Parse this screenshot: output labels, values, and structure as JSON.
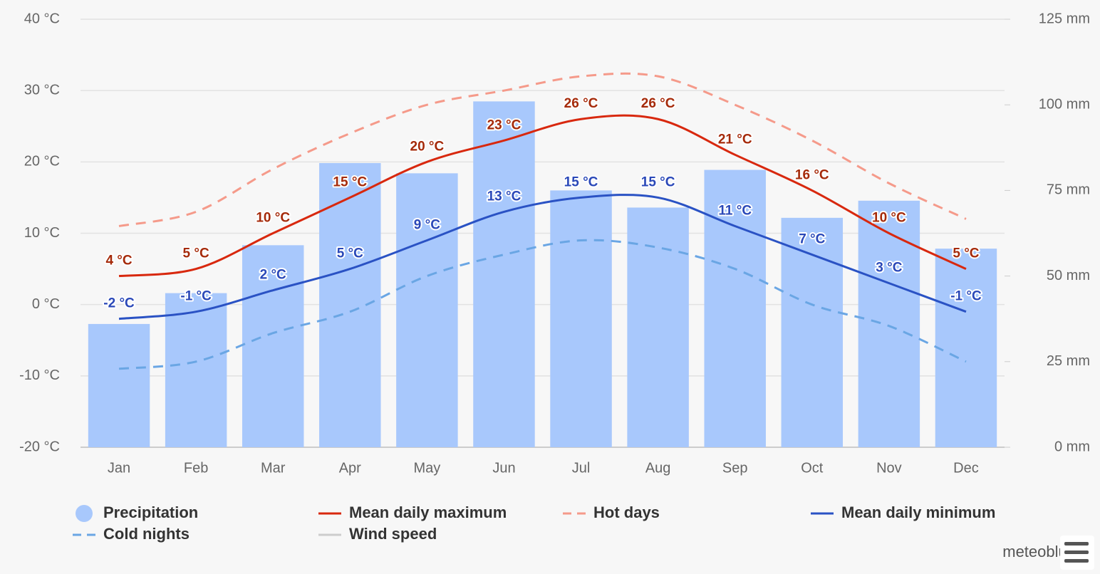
{
  "chart_data": {
    "type": "combo",
    "categories": [
      "Jan",
      "Feb",
      "Mar",
      "Apr",
      "May",
      "Jun",
      "Jul",
      "Aug",
      "Sep",
      "Oct",
      "Nov",
      "Dec"
    ],
    "ylim": [
      -20,
      40
    ],
    "yticks": [
      {
        "value": -20,
        "label": "-20 °C"
      },
      {
        "value": -10,
        "label": "-10 °C"
      },
      {
        "value": 0,
        "label": "0 °C"
      },
      {
        "value": 10,
        "label": "10 °C"
      },
      {
        "value": 20,
        "label": "20 °C"
      },
      {
        "value": 30,
        "label": "30 °C"
      },
      {
        "value": 40,
        "label": "40 °C"
      }
    ],
    "y2lim": [
      0,
      125
    ],
    "y2ticks": [
      {
        "value": 0,
        "label": "0 mm"
      },
      {
        "value": 25,
        "label": "25 mm"
      },
      {
        "value": 50,
        "label": "50 mm"
      },
      {
        "value": 75,
        "label": "75 mm"
      },
      {
        "value": 100,
        "label": "100 mm"
      },
      {
        "value": 125,
        "label": "125 mm"
      }
    ],
    "grid": true,
    "series": [
      {
        "name": "Precipitation",
        "type": "bar",
        "axis": "y2",
        "color": "#a8c8fc",
        "values": [
          36,
          45,
          59,
          83,
          80,
          101,
          75,
          70,
          81,
          67,
          72,
          58
        ]
      },
      {
        "name": "Mean daily maximum",
        "type": "line",
        "color": "#d8280e",
        "label_color": "#a52a0a",
        "values": [
          4,
          5,
          10,
          15,
          20,
          23,
          26,
          26,
          21,
          16,
          10,
          5
        ],
        "value_labels": [
          "4 °C",
          "5 °C",
          "10 °C",
          "15 °C",
          "20 °C",
          "23 °C",
          "26 °C",
          "26 °C",
          "21 °C",
          "16 °C",
          "10 °C",
          "5 °C"
        ]
      },
      {
        "name": "Hot days",
        "type": "line",
        "dashed": true,
        "color": "#f59a8a",
        "values": [
          11,
          13,
          19,
          24,
          28,
          30,
          32,
          32,
          28,
          23,
          17,
          12
        ]
      },
      {
        "name": "Mean daily minimum",
        "type": "line",
        "color": "#2a52c4",
        "label_color": "#2a48b8",
        "values": [
          -2,
          -1,
          2,
          5,
          9,
          13,
          15,
          15,
          11,
          7,
          3,
          -1
        ],
        "value_labels": [
          "-2 °C",
          "-1 °C",
          "2 °C",
          "5 °C",
          "9 °C",
          "13 °C",
          "15 °C",
          "15 °C",
          "11 °C",
          "7 °C",
          "3 °C",
          "-1 °C"
        ]
      },
      {
        "name": "Cold nights",
        "type": "line",
        "dashed": true,
        "color": "#6aa6e4",
        "values": [
          -9,
          -8,
          -4,
          -1,
          4,
          7,
          9,
          8,
          5,
          0,
          -3,
          -8
        ]
      },
      {
        "name": "Wind speed",
        "type": "line",
        "hidden": true,
        "color": "#cccccc"
      }
    ],
    "credit": "meteoblue"
  }
}
